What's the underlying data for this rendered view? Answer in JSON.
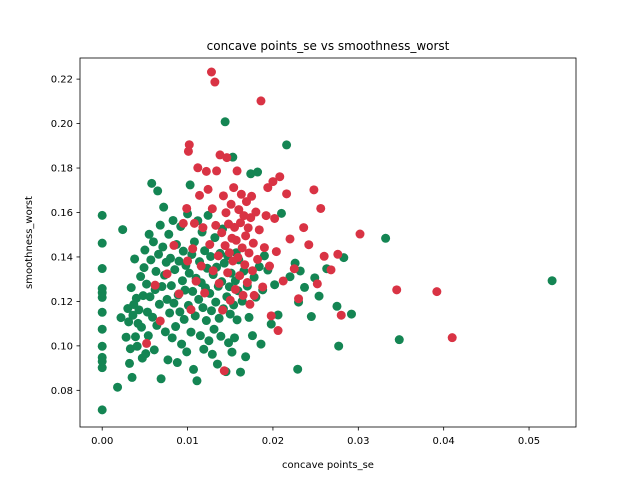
{
  "chart_data": {
    "type": "scatter",
    "title": "concave points_se vs smoothness_worst",
    "xlabel": "concave points_se",
    "ylabel": "smoothness_worst",
    "xlim": [
      -0.0026,
      0.0555
    ],
    "ylim": [
      0.0635,
      0.2295
    ],
    "xticks": [
      0.0,
      0.01,
      0.02,
      0.03,
      0.04,
      0.05
    ],
    "xtick_labels": [
      "0.00",
      "0.01",
      "0.02",
      "0.03",
      "0.04",
      "0.05"
    ],
    "yticks": [
      0.08,
      0.1,
      0.12,
      0.14,
      0.16,
      0.18,
      0.2,
      0.22
    ],
    "ytick_labels": [
      "0.08",
      "0.10",
      "0.12",
      "0.14",
      "0.16",
      "0.18",
      "0.20",
      "0.22"
    ],
    "grid": false,
    "legend": "none",
    "series": [
      {
        "color": "#148553",
        "points": [
          [
            0.0,
            0.0712
          ],
          [
            0.0,
            0.0902
          ],
          [
            0.0,
            0.093
          ],
          [
            0.0,
            0.0948
          ],
          [
            0.0,
            0.0998
          ],
          [
            0.0,
            0.1075
          ],
          [
            0.0,
            0.1151
          ],
          [
            0.0,
            0.1218
          ],
          [
            0.0,
            0.1239
          ],
          [
            0.0,
            0.1258
          ],
          [
            0.0,
            0.1348
          ],
          [
            0.0,
            0.1462
          ],
          [
            0.0,
            0.1587
          ],
          [
            0.0018,
            0.0814
          ],
          [
            0.0022,
            0.1127
          ],
          [
            0.0024,
            0.1523
          ],
          [
            0.0028,
            0.1039
          ],
          [
            0.003,
            0.1168
          ],
          [
            0.0031,
            0.1108
          ],
          [
            0.0032,
            0.0921
          ],
          [
            0.0033,
            0.0987
          ],
          [
            0.0034,
            0.1262
          ],
          [
            0.0035,
            0.0858
          ],
          [
            0.0036,
            0.1138
          ],
          [
            0.0037,
            0.1186
          ],
          [
            0.0038,
            0.1391
          ],
          [
            0.0039,
            0.1041
          ],
          [
            0.004,
            0.1214
          ],
          [
            0.0041,
            0.0998
          ],
          [
            0.0042,
            0.1101
          ],
          [
            0.0043,
            0.1162
          ],
          [
            0.0045,
            0.1312
          ],
          [
            0.0046,
            0.1084
          ],
          [
            0.0047,
            0.0945
          ],
          [
            0.0048,
            0.1226
          ],
          [
            0.0049,
            0.1352
          ],
          [
            0.005,
            0.1431
          ],
          [
            0.0051,
            0.0965
          ],
          [
            0.0052,
            0.1278
          ],
          [
            0.0053,
            0.1152
          ],
          [
            0.0054,
            0.1046
          ],
          [
            0.0055,
            0.1502
          ],
          [
            0.0056,
            0.1221
          ],
          [
            0.0057,
            0.1387
          ],
          [
            0.0058,
            0.1731
          ],
          [
            0.0059,
            0.1129
          ],
          [
            0.006,
            0.1468
          ],
          [
            0.0061,
            0.0982
          ],
          [
            0.0062,
            0.1253
          ],
          [
            0.0063,
            0.1335
          ],
          [
            0.0064,
            0.1092
          ],
          [
            0.0065,
            0.1697
          ],
          [
            0.0066,
            0.1412
          ],
          [
            0.0067,
            0.1187
          ],
          [
            0.0068,
            0.1543
          ],
          [
            0.0069,
            0.0852
          ],
          [
            0.007,
            0.1267
          ],
          [
            0.0071,
            0.1445
          ],
          [
            0.0072,
            0.1624
          ],
          [
            0.0073,
            0.1318
          ],
          [
            0.0074,
            0.1063
          ],
          [
            0.0075,
            0.1376
          ],
          [
            0.0076,
            0.1209
          ],
          [
            0.0077,
            0.0937
          ],
          [
            0.0078,
            0.1502
          ],
          [
            0.0079,
            0.1148
          ],
          [
            0.008,
            0.1394
          ],
          [
            0.0081,
            0.1271
          ],
          [
            0.0082,
            0.1036
          ],
          [
            0.0083,
            0.1564
          ],
          [
            0.0084,
            0.1192
          ],
          [
            0.0085,
            0.1343
          ],
          [
            0.0086,
            0.1087
          ],
          [
            0.0087,
            0.1456
          ],
          [
            0.0088,
            0.0925
          ],
          [
            0.0089,
            0.1229
          ],
          [
            0.009,
            0.1381
          ],
          [
            0.0091,
            0.1153
          ],
          [
            0.0092,
            0.1537
          ],
          [
            0.0093,
            0.1008
          ],
          [
            0.0094,
            0.1293
          ],
          [
            0.0095,
            0.1426
          ],
          [
            0.0096,
            0.1119
          ],
          [
            0.0097,
            0.1251
          ],
          [
            0.0098,
            0.1362
          ],
          [
            0.0099,
            0.0973
          ],
          [
            0.01,
            0.1594
          ],
          [
            0.0101,
            0.1182
          ],
          [
            0.0102,
            0.1327
          ],
          [
            0.0103,
            0.1724
          ],
          [
            0.0104,
            0.1062
          ],
          [
            0.0105,
            0.1411
          ],
          [
            0.0106,
            0.1245
          ],
          [
            0.0107,
            0.0894
          ],
          [
            0.0108,
            0.1468
          ],
          [
            0.0109,
            0.1135
          ],
          [
            0.011,
            0.1304
          ],
          [
            0.0111,
            0.0843
          ],
          [
            0.0112,
            0.1563
          ],
          [
            0.0113,
            0.1209
          ],
          [
            0.0114,
            0.1379
          ],
          [
            0.0115,
            0.1046
          ],
          [
            0.0116,
            0.1284
          ],
          [
            0.0117,
            0.1512
          ],
          [
            0.0118,
            0.1172
          ],
          [
            0.0119,
            0.0985
          ],
          [
            0.012,
            0.1428
          ],
          [
            0.0121,
            0.1261
          ],
          [
            0.0122,
            0.1114
          ],
          [
            0.0123,
            0.1349
          ],
          [
            0.0124,
            0.1587
          ],
          [
            0.0125,
            0.1023
          ],
          [
            0.0126,
            0.1236
          ],
          [
            0.0127,
            0.1402
          ],
          [
            0.0128,
            0.1158
          ],
          [
            0.0129,
            0.0962
          ],
          [
            0.013,
            0.1321
          ],
          [
            0.0131,
            0.1075
          ],
          [
            0.0132,
            0.1487
          ],
          [
            0.0133,
            0.1197
          ],
          [
            0.0134,
            0.1354
          ],
          [
            0.0135,
            0.0918
          ],
          [
            0.0136,
            0.1268
          ],
          [
            0.0137,
            0.1124
          ],
          [
            0.0138,
            0.1416
          ],
          [
            0.0139,
            0.1043
          ],
          [
            0.014,
            0.1289
          ],
          [
            0.0141,
            0.1526
          ],
          [
            0.0142,
            0.1167
          ],
          [
            0.0143,
            0.1372
          ],
          [
            0.0144,
            0.2008
          ],
          [
            0.0145,
            0.0884
          ],
          [
            0.0146,
            0.1221
          ],
          [
            0.0147,
            0.1405
          ],
          [
            0.0148,
            0.1014
          ],
          [
            0.0149,
            0.1266
          ],
          [
            0.015,
            0.1143
          ],
          [
            0.0151,
            0.1327
          ],
          [
            0.0152,
            0.0972
          ],
          [
            0.0153,
            0.1849
          ],
          [
            0.0154,
            0.1184
          ],
          [
            0.0155,
            0.1036
          ],
          [
            0.0156,
            0.1293
          ],
          [
            0.0157,
            0.1419
          ],
          [
            0.0158,
            0.1117
          ],
          [
            0.0159,
            0.1248
          ],
          [
            0.016,
            0.1387
          ],
          [
            0.0162,
            0.0882
          ],
          [
            0.0164,
            0.1201
          ],
          [
            0.0166,
            0.1337
          ],
          [
            0.0168,
            0.0951
          ],
          [
            0.017,
            0.1269
          ],
          [
            0.0172,
            0.1128
          ],
          [
            0.0174,
            0.1774
          ],
          [
            0.0176,
            0.1046
          ],
          [
            0.0178,
            0.1309
          ],
          [
            0.018,
            0.1219
          ],
          [
            0.0182,
            0.1782
          ],
          [
            0.0184,
            0.1356
          ],
          [
            0.0186,
            0.1008
          ],
          [
            0.0188,
            0.1252
          ],
          [
            0.019,
            0.1405
          ],
          [
            0.0194,
            0.1341
          ],
          [
            0.0198,
            0.1098
          ],
          [
            0.0202,
            0.1275
          ],
          [
            0.0206,
            0.1139
          ],
          [
            0.021,
            0.1596
          ],
          [
            0.0216,
            0.1904
          ],
          [
            0.022,
            0.1311
          ],
          [
            0.0226,
            0.1372
          ],
          [
            0.0229,
            0.0895
          ],
          [
            0.023,
            0.1197
          ],
          [
            0.0232,
            0.1337
          ],
          [
            0.0237,
            0.1263
          ],
          [
            0.0245,
            0.1132
          ],
          [
            0.0249,
            0.1306
          ],
          [
            0.0254,
            0.1224
          ],
          [
            0.0263,
            0.1347
          ],
          [
            0.0275,
            0.1178
          ],
          [
            0.0277,
            0.0999
          ],
          [
            0.0283,
            0.1397
          ],
          [
            0.0292,
            0.1143
          ],
          [
            0.0332,
            0.1484
          ],
          [
            0.0348,
            0.1028
          ],
          [
            0.0527,
            0.1293
          ]
        ]
      },
      {
        "color": "#d93344",
        "points": [
          [
            0.0052,
            0.1011
          ],
          [
            0.0062,
            0.1273
          ],
          [
            0.0068,
            0.1112
          ],
          [
            0.0076,
            0.1324
          ],
          [
            0.0084,
            0.1452
          ],
          [
            0.009,
            0.1234
          ],
          [
            0.0095,
            0.1551
          ],
          [
            0.0099,
            0.1618
          ],
          [
            0.01,
            0.1382
          ],
          [
            0.0101,
            0.1875
          ],
          [
            0.0102,
            0.1905
          ],
          [
            0.0104,
            0.1163
          ],
          [
            0.0106,
            0.1437
          ],
          [
            0.0108,
            0.1551
          ],
          [
            0.011,
            0.1291
          ],
          [
            0.0112,
            0.1801
          ],
          [
            0.0114,
            0.1677
          ],
          [
            0.0116,
            0.1359
          ],
          [
            0.0118,
            0.1532
          ],
          [
            0.012,
            0.1238
          ],
          [
            0.0122,
            0.1785
          ],
          [
            0.0124,
            0.1704
          ],
          [
            0.0126,
            0.1456
          ],
          [
            0.0128,
            0.2232
          ],
          [
            0.0129,
            0.1617
          ],
          [
            0.013,
            0.1338
          ],
          [
            0.0132,
            0.2187
          ],
          [
            0.0133,
            0.1542
          ],
          [
            0.0134,
            0.1787
          ],
          [
            0.0136,
            0.1405
          ],
          [
            0.0137,
            0.1281
          ],
          [
            0.0138,
            0.1859
          ],
          [
            0.014,
            0.1509
          ],
          [
            0.0141,
            0.1161
          ],
          [
            0.0142,
            0.1675
          ],
          [
            0.0143,
            0.0888
          ],
          [
            0.0144,
            0.1451
          ],
          [
            0.0145,
            0.1599
          ],
          [
            0.0146,
            0.1847
          ],
          [
            0.0147,
            0.1329
          ],
          [
            0.0148,
            0.1548
          ],
          [
            0.0149,
            0.1419
          ],
          [
            0.015,
            0.1205
          ],
          [
            0.0151,
            0.1637
          ],
          [
            0.0152,
            0.1484
          ],
          [
            0.0153,
            0.1382
          ],
          [
            0.0154,
            0.1712
          ],
          [
            0.0155,
            0.1533
          ],
          [
            0.0156,
            0.1254
          ],
          [
            0.0157,
            0.1475
          ],
          [
            0.0158,
            0.1787
          ],
          [
            0.0159,
            0.1398
          ],
          [
            0.016,
            0.1613
          ],
          [
            0.0161,
            0.1316
          ],
          [
            0.0162,
            0.1554
          ],
          [
            0.0163,
            0.1682
          ],
          [
            0.0164,
            0.1441
          ],
          [
            0.0165,
            0.1227
          ],
          [
            0.0166,
            0.1586
          ],
          [
            0.0167,
            0.1365
          ],
          [
            0.0168,
            0.1495
          ],
          [
            0.0169,
            0.1649
          ],
          [
            0.017,
            0.1285
          ],
          [
            0.0171,
            0.1531
          ],
          [
            0.0172,
            0.1418
          ],
          [
            0.0173,
            0.1187
          ],
          [
            0.0174,
            0.1577
          ],
          [
            0.0175,
            0.1673
          ],
          [
            0.0176,
            0.1338
          ],
          [
            0.0177,
            0.1462
          ],
          [
            0.0178,
            0.1227
          ],
          [
            0.018,
            0.1602
          ],
          [
            0.0182,
            0.1389
          ],
          [
            0.0184,
            0.1522
          ],
          [
            0.0186,
            0.2102
          ],
          [
            0.0188,
            0.1265
          ],
          [
            0.019,
            0.1442
          ],
          [
            0.0192,
            0.1586
          ],
          [
            0.0194,
            0.1712
          ],
          [
            0.0196,
            0.1359
          ],
          [
            0.0198,
            0.1135
          ],
          [
            0.02,
            0.1739
          ],
          [
            0.0202,
            0.1573
          ],
          [
            0.0204,
            0.1424
          ],
          [
            0.0206,
            0.1069
          ],
          [
            0.0208,
            0.1761
          ],
          [
            0.0212,
            0.1292
          ],
          [
            0.0216,
            0.1684
          ],
          [
            0.022,
            0.1481
          ],
          [
            0.0225,
            0.1347
          ],
          [
            0.023,
            0.1212
          ],
          [
            0.0236,
            0.1532
          ],
          [
            0.0242,
            0.1455
          ],
          [
            0.0248,
            0.1702
          ],
          [
            0.0252,
            0.1279
          ],
          [
            0.0256,
            0.1618
          ],
          [
            0.026,
            0.1403
          ],
          [
            0.0268,
            0.1342
          ],
          [
            0.0276,
            0.1412
          ],
          [
            0.028,
            0.1138
          ],
          [
            0.0302,
            0.1503
          ],
          [
            0.0345,
            0.1252
          ],
          [
            0.0392,
            0.1244
          ],
          [
            0.041,
            0.1037
          ]
        ]
      }
    ]
  }
}
